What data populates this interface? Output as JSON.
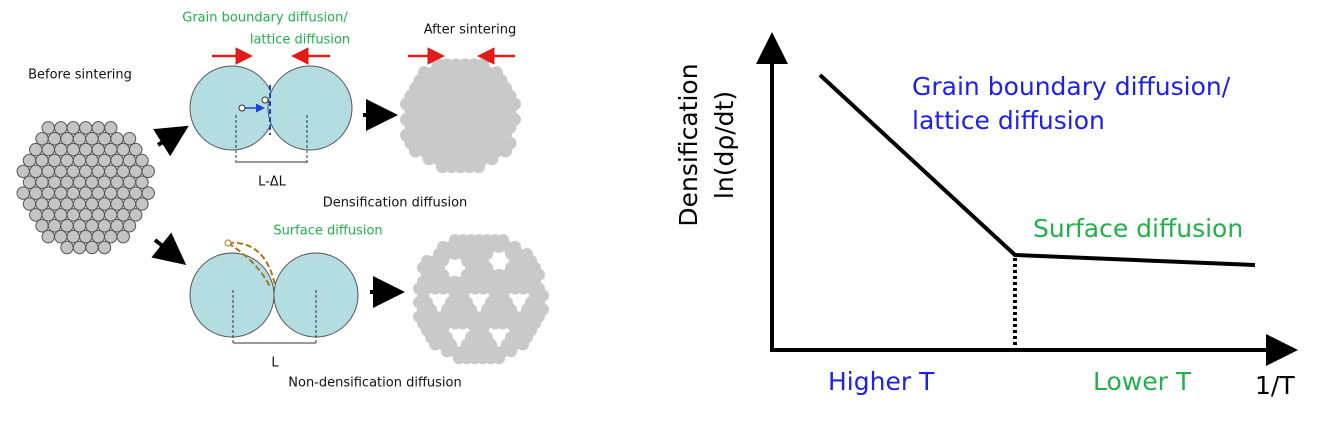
{
  "sintering": {
    "grain_boundary_label": [
      "Grain boundary diffusion/",
      "lattice diffusion"
    ],
    "after_label": "After sintering",
    "before_label": "Before sintering",
    "shrunk_length": "L-ΔL",
    "densification_label": "Densification diffusion",
    "surface_label": "Surface diffusion",
    "length": "L",
    "non_densification_label": "Non-densification diffusion"
  },
  "plot": {
    "y_label": [
      "Densification",
      "ln(dρ/dt)"
    ],
    "grain_boundary_label": [
      "Grain boundary diffusion/",
      "lattice diffusion"
    ],
    "surface_label": "Surface diffusion",
    "higher_label": "Higher T",
    "lower_label": "Lower T",
    "x_label": "1/T"
  }
}
